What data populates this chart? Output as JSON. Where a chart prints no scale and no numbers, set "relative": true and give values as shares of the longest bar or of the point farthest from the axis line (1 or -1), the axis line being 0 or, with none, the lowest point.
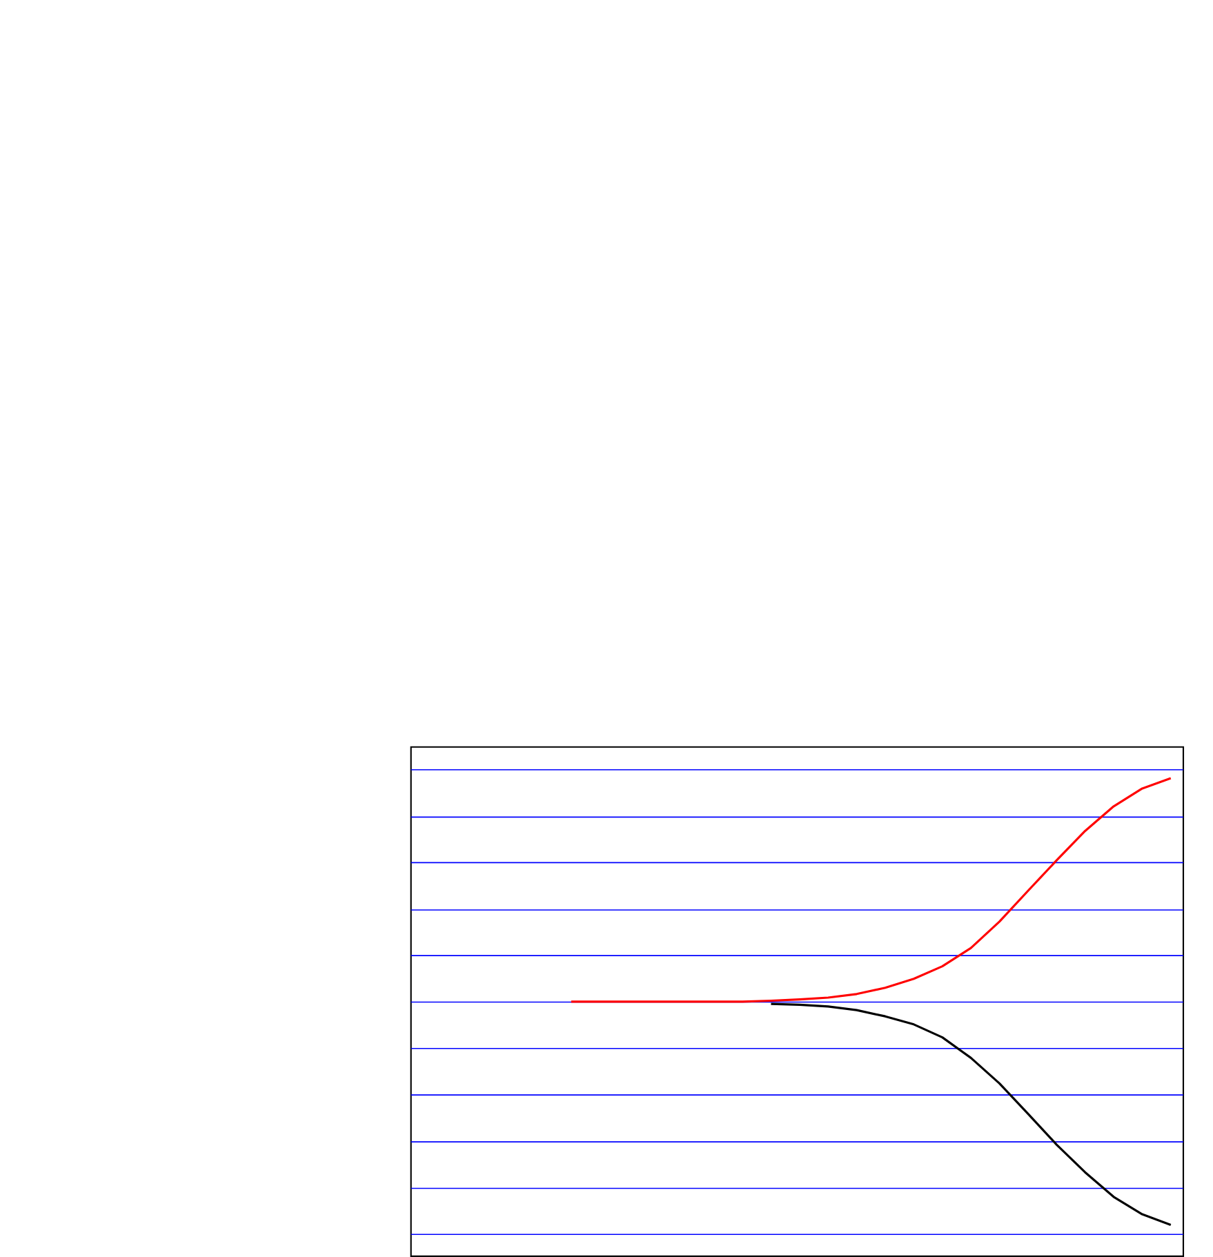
{
  "chart_data": {
    "type": "line",
    "relative": true,
    "categories": [
      null,
      null,
      null,
      null,
      null,
      null,
      null,
      null,
      null,
      null,
      null,
      null,
      null,
      null,
      null,
      null,
      null,
      null,
      null,
      null,
      null,
      null
    ],
    "series": [
      {
        "color": "#000000",
        "values": [
          null,
          null,
          null,
          null,
          null,
          null,
          null,
          0.495,
          0.493,
          0.489,
          0.481,
          0.467,
          0.449,
          0.42,
          0.374,
          0.317,
          0.249,
          0.18,
          0.118,
          0.063,
          0.024,
          0
        ]
      },
      {
        "color": "#ff0000",
        "values": [
          0.5,
          0.5,
          0.5,
          0.5,
          0.5,
          0.5,
          0.5,
          0.502,
          0.505,
          0.509,
          0.517,
          0.531,
          0.551,
          0.579,
          0.62,
          0.679,
          0.748,
          0.816,
          0.882,
          0.937,
          0.977,
          1
        ]
      }
    ],
    "ref_lines": [
      {
        "axis": "y",
        "value": 1.019,
        "color": "#0000ff"
      },
      {
        "axis": "y",
        "value": 0.913,
        "color": "#0000ff"
      },
      {
        "axis": "y",
        "value": 0.811,
        "color": "#0000ff"
      },
      {
        "axis": "y",
        "value": 0.705,
        "color": "#0000ff"
      },
      {
        "axis": "y",
        "value": 0.603,
        "color": "#0000ff"
      },
      {
        "axis": "y",
        "value": 0.499,
        "color": "#0000ff"
      },
      {
        "axis": "y",
        "value": 0.395,
        "color": "#0000ff"
      },
      {
        "axis": "y",
        "value": 0.291,
        "color": "#0000ff"
      },
      {
        "axis": "y",
        "value": 0.186,
        "color": "#0000ff"
      },
      {
        "axis": "y",
        "value": 0.082,
        "color": "#0000ff"
      },
      {
        "axis": "y",
        "value": -0.021,
        "color": "#0000ff"
      }
    ]
  }
}
